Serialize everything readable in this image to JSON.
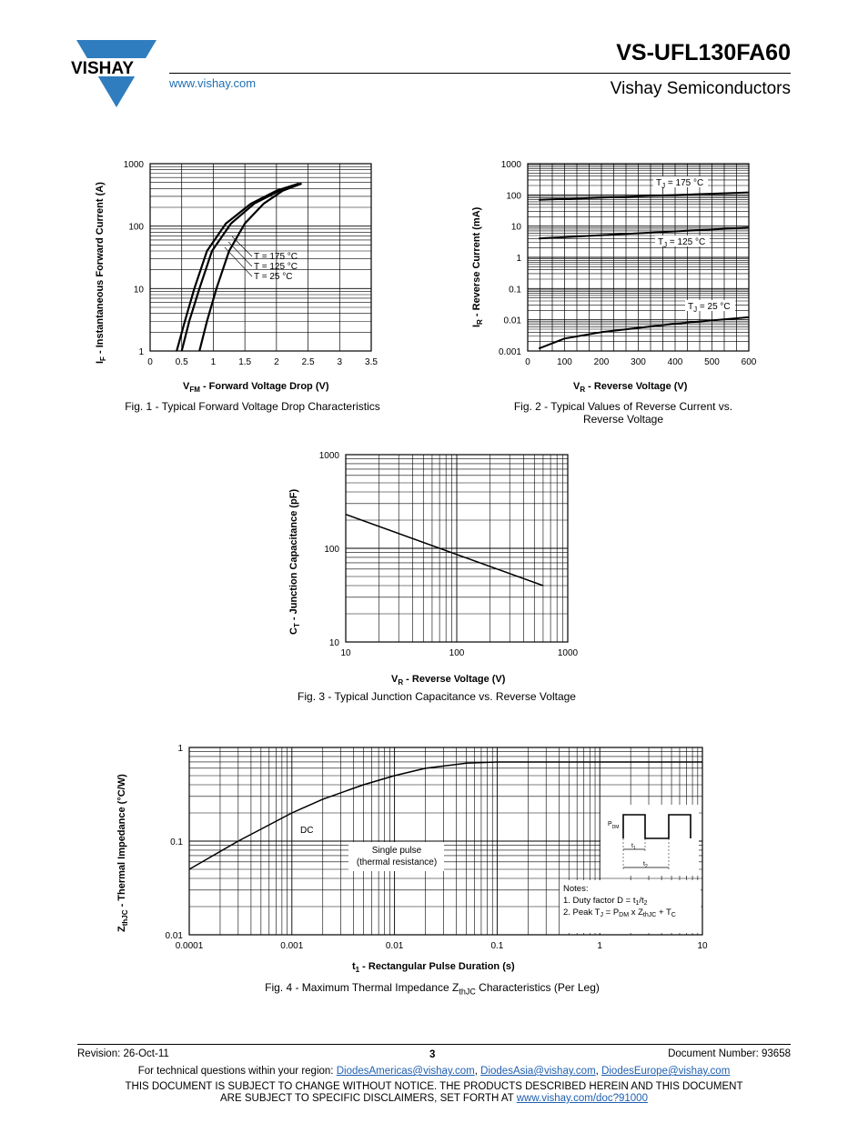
{
  "header": {
    "brand": "VISHAY",
    "url": "www.vishay.com",
    "part_number": "VS-UFL130FA60",
    "company": "Vishay Semiconductors"
  },
  "chart_data": [
    {
      "id": "fig1",
      "type": "line",
      "caption": "Fig. 1 - Typical Forward Voltage Drop Characteristics",
      "xlabel": "V_FM - Forward Voltage Drop (V)",
      "ylabel": "I_F - Instantaneous Forward Current (A)",
      "xlim": [
        0,
        3.5
      ],
      "xscale": "linear",
      "ylim": [
        1,
        1000
      ],
      "yscale": "log",
      "xticks": [
        "0",
        "0.5",
        "1",
        "1.5",
        "2",
        "2.5",
        "3",
        "3.5"
      ],
      "yticks": [
        "1",
        "10",
        "100",
        "1000"
      ],
      "legend": [
        "T = 175 °C",
        "T = 125 °C",
        "T =   25 °C"
      ],
      "series": [
        {
          "name": "T = 175 °C",
          "x": [
            0.42,
            0.55,
            0.7,
            0.9,
            1.2,
            1.6,
            2.0,
            2.35
          ],
          "y": [
            1,
            3,
            10,
            40,
            110,
            230,
            370,
            480
          ]
        },
        {
          "name": "T = 125 °C",
          "x": [
            0.5,
            0.62,
            0.78,
            0.98,
            1.28,
            1.65,
            2.05,
            2.38
          ],
          "y": [
            1,
            3,
            10,
            40,
            110,
            230,
            370,
            480
          ]
        },
        {
          "name": "T =   25 °C",
          "x": [
            0.78,
            0.9,
            1.05,
            1.25,
            1.5,
            1.8,
            2.1,
            2.4
          ],
          "y": [
            1,
            3,
            10,
            40,
            110,
            230,
            370,
            480
          ]
        }
      ]
    },
    {
      "id": "fig2",
      "type": "line",
      "caption": "Fig. 2 - Typical Values of Reverse Current vs. Reverse Voltage",
      "xlabel": "V_R - Reverse Voltage (V)",
      "ylabel": "I_R - Reverse Current (mA)",
      "xlim": [
        0,
        600
      ],
      "xscale": "linear",
      "ylim": [
        0.001,
        1000
      ],
      "yscale": "log",
      "xticks": [
        "0",
        "100",
        "200",
        "300",
        "400",
        "500",
        "600"
      ],
      "yticks": [
        "0.001",
        "0.01",
        "0.1",
        "1",
        "10",
        "100",
        "1000"
      ],
      "series": [
        {
          "name": "T_J = 175 °C",
          "x": [
            30,
            600
          ],
          "y": [
            70,
            120
          ]
        },
        {
          "name": "T_J = 125 °C",
          "x": [
            30,
            600
          ],
          "y": [
            4,
            9
          ]
        },
        {
          "name": "T_J = 25 °C",
          "x": [
            30,
            100,
            200,
            300,
            400,
            500,
            600
          ],
          "y": [
            0.0012,
            0.0025,
            0.004,
            0.0055,
            0.0075,
            0.0095,
            0.012
          ]
        }
      ]
    },
    {
      "id": "fig3",
      "type": "line",
      "caption": "Fig. 3 - Typical Junction Capacitance vs. Reverse Voltage",
      "xlabel": "V_R - Reverse Voltage (V)",
      "ylabel": "C_T - Junction Capacitance (pF)",
      "xlim": [
        10,
        1000
      ],
      "xscale": "log",
      "ylim": [
        10,
        1000
      ],
      "yscale": "log",
      "xticks": [
        "10",
        "100",
        "1000"
      ],
      "yticks": [
        "10",
        "100",
        "1000"
      ],
      "series": [
        {
          "name": "C_T",
          "x": [
            10,
            600
          ],
          "y": [
            230,
            40
          ]
        }
      ]
    },
    {
      "id": "fig4",
      "type": "line",
      "caption": "Fig. 4 - Maximum Thermal Impedance Z_thJC Characteristics (Per Leg)",
      "xlabel": "t_1 - Rectangular Pulse Duration (s)",
      "ylabel": "Z_thJC - Thermal Impedance (°C/W)",
      "xlim": [
        0.0001,
        10
      ],
      "xscale": "log",
      "ylim": [
        0.01,
        1
      ],
      "yscale": "log",
      "xticks": [
        "0.0001",
        "0.001",
        "0.01",
        "0.1",
        "1",
        "10"
      ],
      "yticks": [
        "0.01",
        "0.1",
        "1"
      ],
      "annotations": [
        "DC",
        "Single pulse",
        "(thermal resistance)",
        "Notes:",
        "1. Duty factor D = t1/t2",
        "2. Peak TJ = PDM x ZthJC + TC"
      ],
      "series": [
        {
          "name": "Single pulse",
          "x": [
            0.0001,
            0.0003,
            0.001,
            0.002,
            0.005,
            0.01,
            0.02,
            0.05,
            0.1,
            0.2,
            1,
            10
          ],
          "y": [
            0.05,
            0.1,
            0.2,
            0.28,
            0.4,
            0.5,
            0.6,
            0.68,
            0.7,
            0.7,
            0.7,
            0.7
          ]
        }
      ]
    }
  ],
  "fig4_inset": {
    "pdm": "P",
    "pdm_sub": "DM",
    "t1": "t",
    "t1_sub": "1",
    "t2": "t",
    "t2_sub": "2"
  },
  "footer": {
    "revision": "Revision: 26-Oct-11",
    "page": "3",
    "docnum": "Document Number: 93658",
    "contact_prefix": "For technical questions within your region:",
    "email1": "DiodesAmericas@vishay.com",
    "email2": "DiodesAsia@vishay.com",
    "email3": "DiodesEurope@vishay.com",
    "disclaimer1": "THIS DOCUMENT IS SUBJECT TO CHANGE WITHOUT NOTICE. THE PRODUCTS DESCRIBED HEREIN AND THIS DOCUMENT",
    "disclaimer2": "ARE SUBJECT TO SPECIFIC DISCLAIMERS, SET FORTH AT",
    "disclaimer_link": "www.vishay.com/doc?91000"
  }
}
